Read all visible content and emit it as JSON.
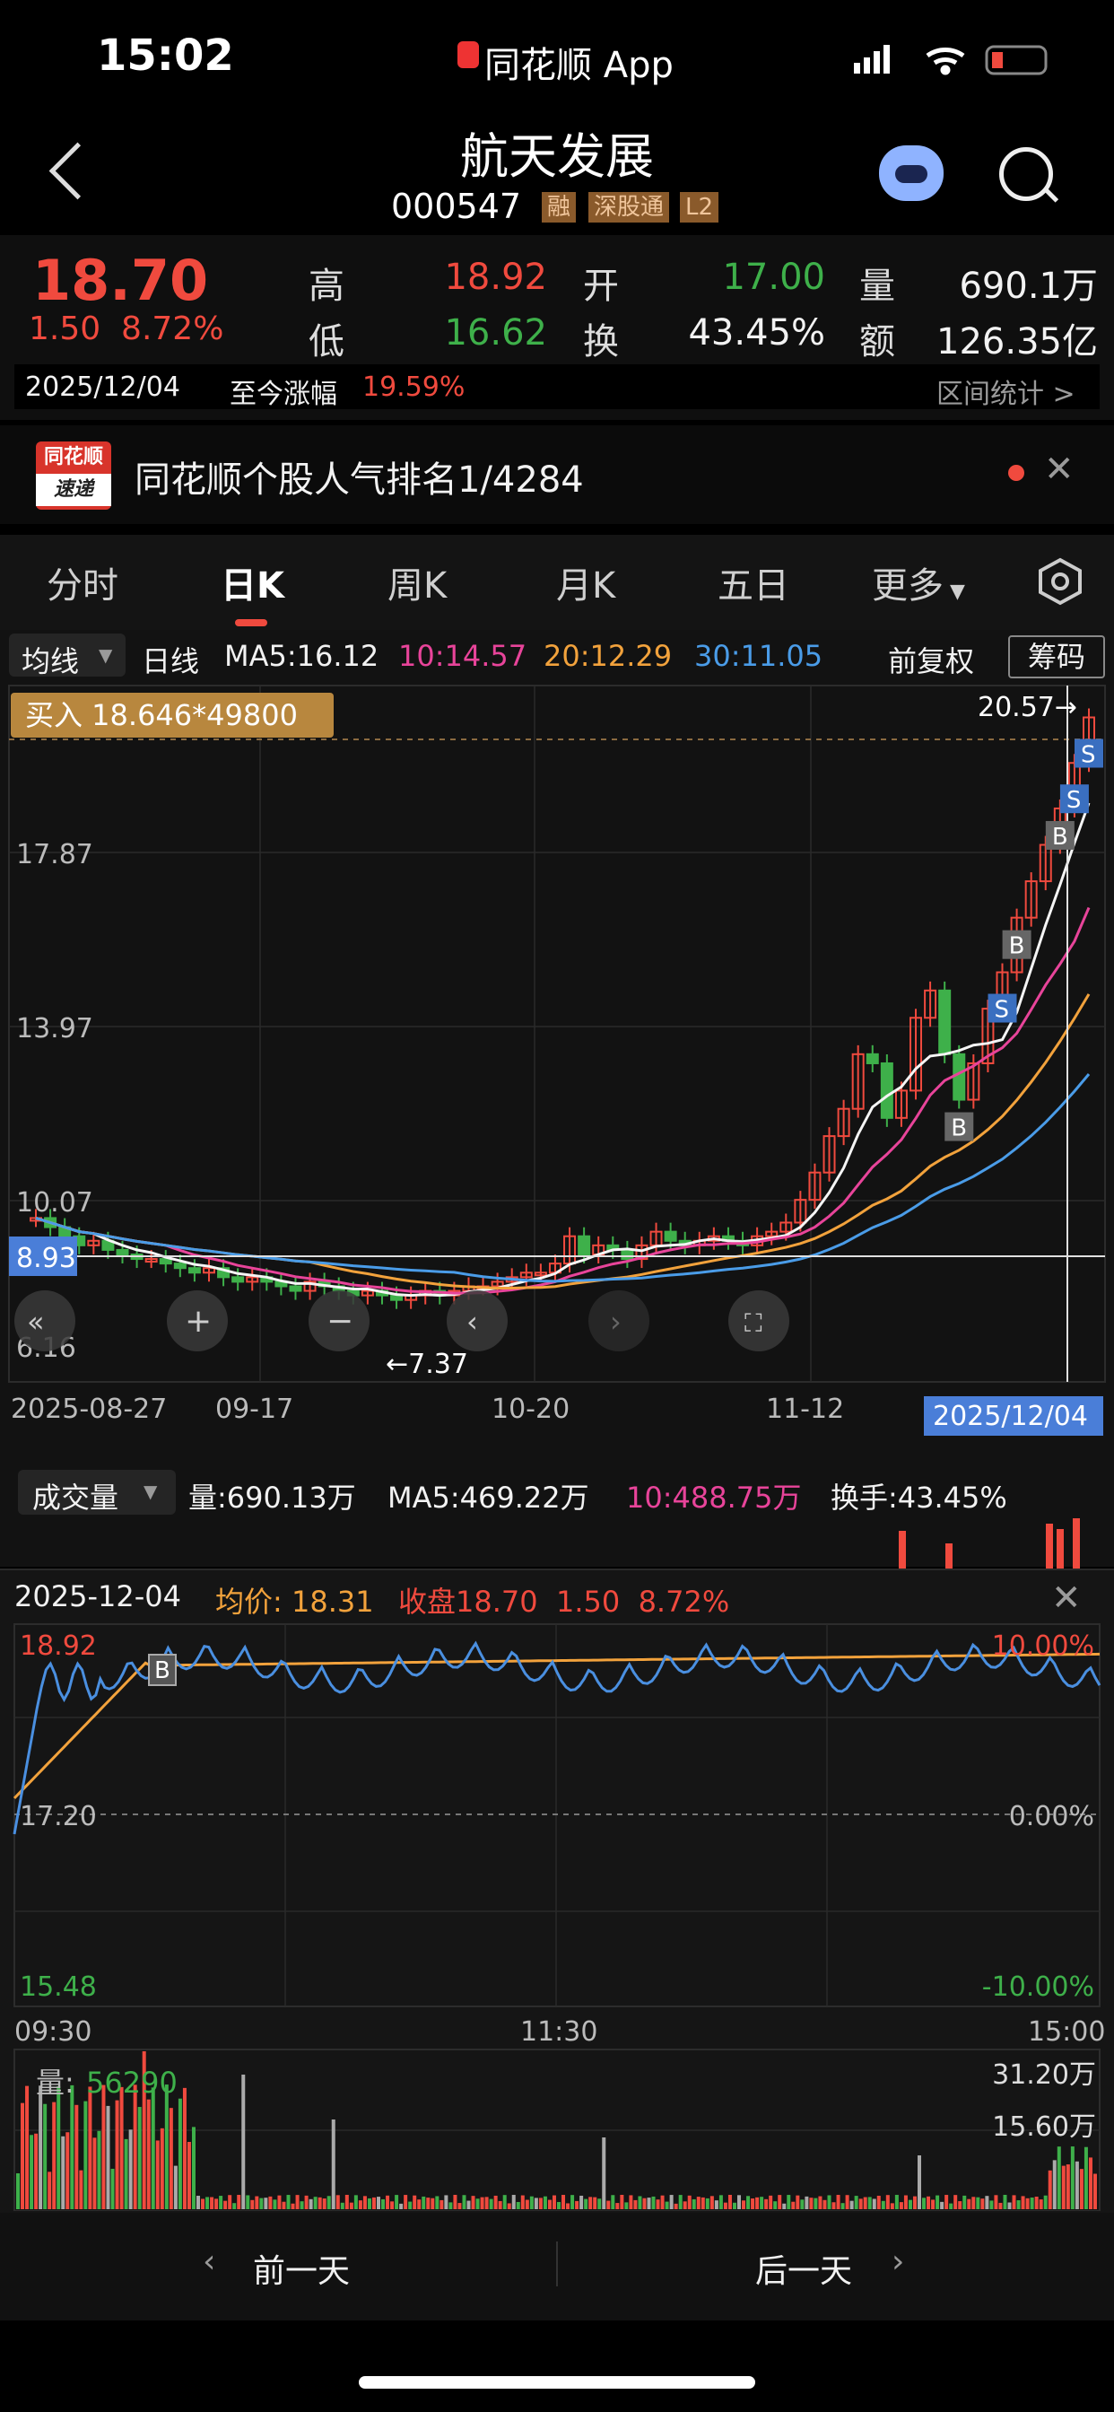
{
  "status_bar": {
    "time": "15:02",
    "app_label": "同花顺 App"
  },
  "header": {
    "title": "航天发展",
    "code": "000547",
    "tags": [
      "融",
      "深股通",
      "L2"
    ]
  },
  "quote": {
    "price": "18.70",
    "change": "1.50",
    "change_pct": "8.72%",
    "high_label": "高",
    "high": "18.92",
    "low_label": "低",
    "low": "16.62",
    "open_label": "开",
    "open": "17.00",
    "turnover_label": "换",
    "turnover": "43.45%",
    "volume_label": "量",
    "volume": "690.1万",
    "amount_label": "额",
    "amount": "126.35亿",
    "date": "2025/12/04",
    "since_label": "至今涨幅",
    "since_value": "19.59%",
    "range_stats": "区间统计 >"
  },
  "news": {
    "logo_top": "同花顺",
    "logo_bottom": "速递",
    "text": "同花顺个股人气排名1/4284"
  },
  "tabs": [
    "分时",
    "日K",
    "周K",
    "月K",
    "五日",
    "更多"
  ],
  "active_tab": 1,
  "indicator_bar": {
    "mode": "均线",
    "period": "日线",
    "ma5": "MA5:16.12",
    "ma10": "10:14.57",
    "ma20": "20:12.29",
    "ma30": "30:11.05",
    "adjust": "前复权",
    "chips": "筹码"
  },
  "kline": {
    "buy_tag": "买入 18.646*49800",
    "max_label": "20.57→",
    "min_label": "←7.37",
    "y_labels": [
      "17.87",
      "13.97",
      "10.07",
      "6.16"
    ],
    "current_line_label": "8.93",
    "x_labels": [
      "2025-08-27",
      "09-17",
      "10-20",
      "11-12"
    ],
    "x_highlight": "2025/12/04",
    "markers": [
      "B",
      "S",
      "B",
      "B",
      "S",
      "S"
    ],
    "colors": {
      "up": "#f04a3e",
      "down": "#3eb04a",
      "ma5": "#f5f5f5",
      "ma10": "#e8449a",
      "ma20": "#f2a23c",
      "ma30": "#4a9ce8"
    }
  },
  "volume_bar": {
    "label": "成交量",
    "vol": "量:690.13万",
    "ma5": "MA5:469.22万",
    "ma10": "10:488.75万",
    "turnover": "换手:43.45%"
  },
  "intraday": {
    "date": "2025-12-04",
    "avg_label": "均价:",
    "avg": "18.31",
    "close_label": "收盘",
    "close": "18.70",
    "change": "1.50",
    "change_pct": "8.72%",
    "top_price": "18.92",
    "mid_price": "17.20",
    "bottom_price": "15.48",
    "top_pct": "10.00%",
    "mid_pct": "0.00%",
    "bottom_pct": "-10.00%",
    "times": [
      "09:30",
      "11:30",
      "15:00"
    ],
    "vol_label": "量:",
    "vol_value": "56290",
    "vol_max": "31.20万",
    "vol_mid": "15.60万",
    "marker": "B"
  },
  "bottom_nav": {
    "prev": "前一天",
    "next": "后一天"
  }
}
